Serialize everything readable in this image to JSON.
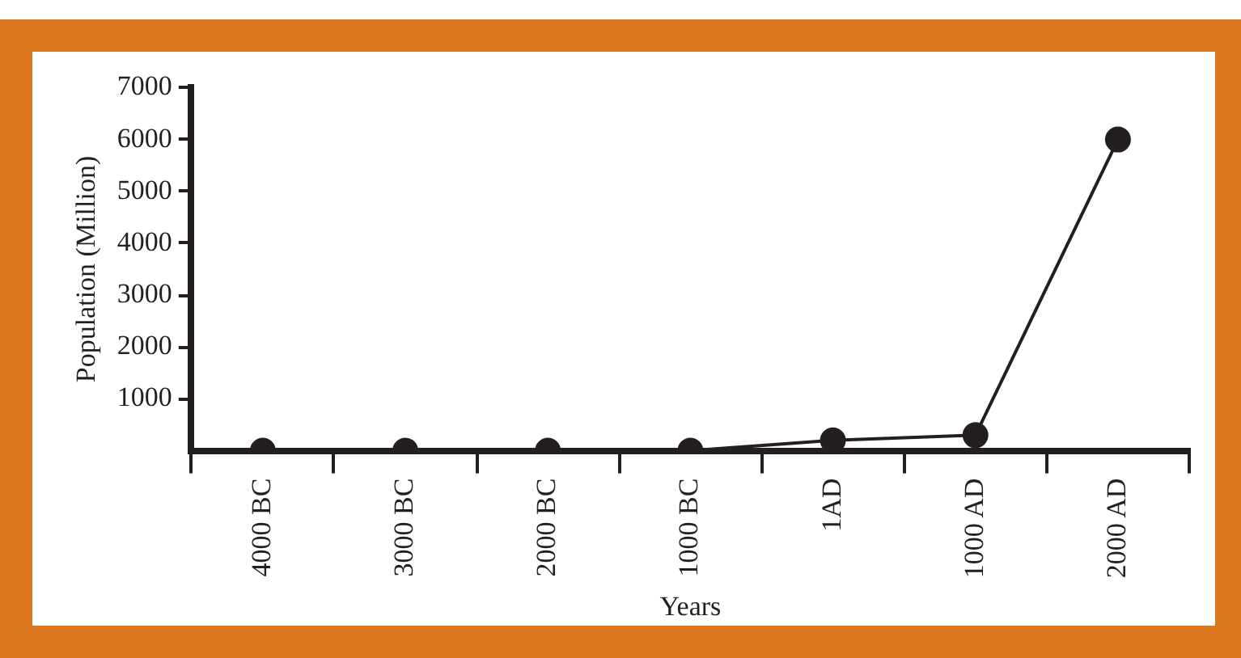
{
  "chart_data": {
    "type": "line",
    "xlabel": "Years",
    "ylabel": "Population (Million)",
    "categories": [
      "4000 BC",
      "3000 BC",
      "2000 BC",
      "1000 BC",
      "1AD",
      "1000 AD",
      "2000 AD"
    ],
    "values": [
      0,
      0,
      0,
      0,
      200,
      300,
      6000
    ],
    "color": "#231f20",
    "ylim": [
      0,
      7000
    ],
    "yticks": [
      1000,
      2000,
      3000,
      4000,
      5000,
      6000,
      7000
    ],
    "grid": false,
    "legend": false,
    "marker": "circle",
    "line_style": "solid"
  }
}
